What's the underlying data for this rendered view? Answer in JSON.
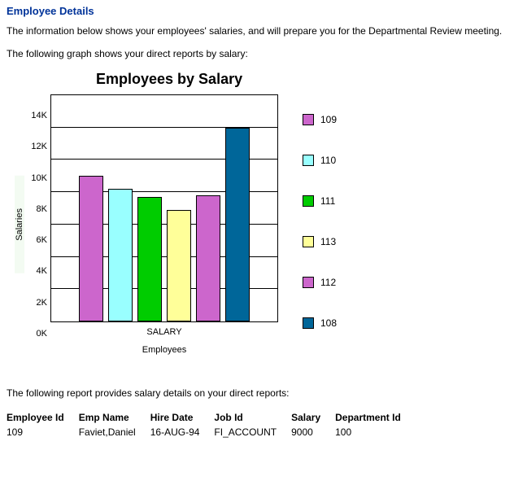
{
  "page": {
    "title": "Employee Details",
    "intro": "The information below shows your employees' salaries, and will prepare you for the Departmental Review meeting.",
    "chart_lead": "The following graph shows your direct reports by salary:",
    "report_lead": "The following report provides salary details on your direct reports:"
  },
  "chart": {
    "type": "bar",
    "title": "Employees by Salary",
    "x_axis_label": "Employees",
    "x_tick": "SALARY",
    "y_axis_label": "Salaries",
    "y_ticks": [
      "14K",
      "12K",
      "10K",
      "8K",
      "6K",
      "4K",
      "2K",
      "0K"
    ],
    "ylim_max": 14,
    "background": "#ffffff",
    "gridline_color": "#000000",
    "series": [
      {
        "id": "109",
        "value": 9.0,
        "color": "#cc66cc"
      },
      {
        "id": "110",
        "value": 8.2,
        "color": "#99ffff"
      },
      {
        "id": "111",
        "value": 7.7,
        "color": "#00cc00"
      },
      {
        "id": "113",
        "value": 6.9,
        "color": "#ffff99"
      },
      {
        "id": "112",
        "value": 7.8,
        "color": "#cc66cc"
      },
      {
        "id": "108",
        "value": 12.0,
        "color": "#006699"
      }
    ],
    "legend": [
      {
        "label": "109",
        "color": "#cc66cc"
      },
      {
        "label": "110",
        "color": "#99ffff"
      },
      {
        "label": "111",
        "color": "#00cc00"
      },
      {
        "label": "113",
        "color": "#ffff99"
      },
      {
        "label": "112",
        "color": "#cc66cc"
      },
      {
        "label": "108",
        "color": "#006699"
      }
    ]
  },
  "table": {
    "columns": [
      "Employee Id",
      "Emp Name",
      "Hire Date",
      "Job Id",
      "Salary",
      "Department Id"
    ],
    "rows": [
      [
        "109",
        "Faviet,Daniel",
        "16-AUG-94",
        "FI_ACCOUNT",
        "9000",
        "100"
      ]
    ]
  }
}
